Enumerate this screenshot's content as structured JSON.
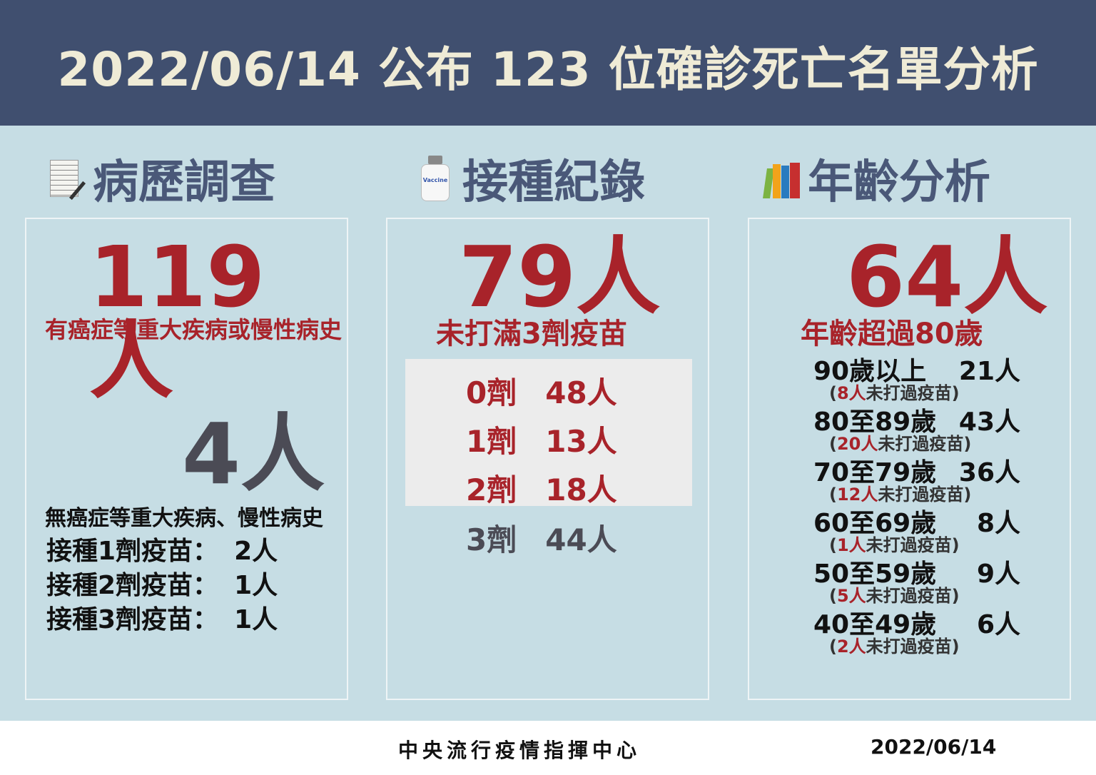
{
  "title": "2022/06/14 公布 123 位確診死亡名單分析",
  "colors": {
    "header": "#404f6f",
    "background": "#c6dde4",
    "accent_red": "#a8232a",
    "section_title": "#4a5878"
  },
  "history": {
    "heading": "病歷調查",
    "icon": "document-pen-icon",
    "count1": "119人",
    "desc1": "有癌症等重大疾病或慢性病史",
    "count2": "4人",
    "desc2": "無癌症等重大疾病、慢性病史",
    "rows": [
      {
        "label": "接種1劑疫苗：",
        "value": "2人"
      },
      {
        "label": "接種2劑疫苗：",
        "value": "1人"
      },
      {
        "label": "接種3劑疫苗：",
        "value": "1人"
      }
    ]
  },
  "vaccine": {
    "heading": "接種紀錄",
    "icon": "vaccine-bottle-icon",
    "icon_text": "Vaccine",
    "count": "79人",
    "desc": "未打滿3劑疫苗",
    "doses": [
      {
        "dose": "0劑",
        "value": "48人"
      },
      {
        "dose": "1劑",
        "value": "13人"
      },
      {
        "dose": "2劑",
        "value": "18人"
      },
      {
        "dose": "3劑",
        "value": "44人"
      }
    ]
  },
  "age": {
    "heading": "年齡分析",
    "icon": "books-icon",
    "count": "64人",
    "desc": "年齡超過80歲",
    "groups": [
      {
        "label": "90歲以上",
        "value": "21人",
        "unvax": "8人",
        "note": "未打過疫苗"
      },
      {
        "label": "80至89歲",
        "value": "43人",
        "unvax": "20人",
        "note": "未打過疫苗"
      },
      {
        "label": "70至79歲",
        "value": "36人",
        "unvax": "12人",
        "note": "未打過疫苗"
      },
      {
        "label": "60至69歲",
        "value": "8人",
        "unvax": "1人",
        "note": "未打過疫苗"
      },
      {
        "label": "50至59歲",
        "value": "9人",
        "unvax": "5人",
        "note": "未打過疫苗"
      },
      {
        "label": "40至49歲",
        "value": "6人",
        "unvax": "2人",
        "note": "未打過疫苗"
      }
    ]
  },
  "footer": {
    "org": "中央流行疫情指揮中心",
    "date": "2022/06/14"
  }
}
